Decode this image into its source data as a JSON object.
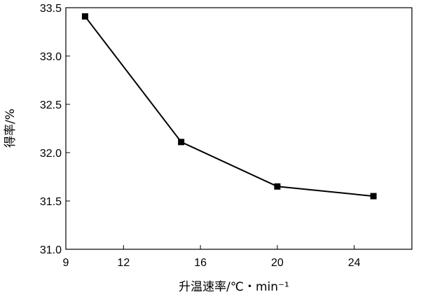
{
  "chart_data": {
    "type": "line",
    "title": "",
    "xlabel": "升温速率/℃・min⁻¹",
    "ylabel": "得率/%",
    "xlim": [
      9,
      27
    ],
    "ylim": [
      31.0,
      33.5
    ],
    "x_ticks": [
      "9",
      "12",
      "16",
      "20",
      "24"
    ],
    "y_ticks": [
      "31.0",
      "31.5",
      "32.0",
      "32.5",
      "33.0",
      "33.5"
    ],
    "grid": false,
    "legend": "none",
    "series": [
      {
        "marker": "square",
        "color": "#000000",
        "x": [
          10,
          15,
          20,
          25
        ],
        "y": [
          33.41,
          32.11,
          31.65,
          31.55
        ]
      }
    ]
  }
}
